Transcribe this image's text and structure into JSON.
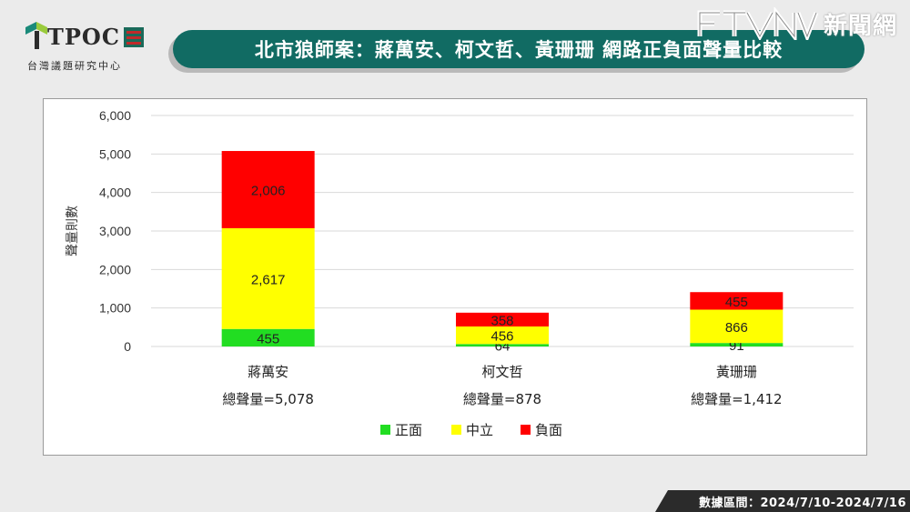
{
  "logo": {
    "name": "TPOC",
    "subtitle": "台灣議題研究中心"
  },
  "brand": {
    "name": "新聞網"
  },
  "title": "北市狼師案：蔣萬安、柯文哲、黃珊珊  網路正負面聲量比較",
  "footer": "數據區間：2024/7/10-2024/7/16",
  "colors": {
    "positive": "#22dd22",
    "neutral": "#ffff00",
    "negative": "#ff0000",
    "title_bg": "#116b63"
  },
  "chart_data": {
    "type": "bar",
    "stacked": true,
    "ylabel": "聲量則數",
    "ylim": [
      0,
      6000
    ],
    "yticks": [
      "0",
      "1,000",
      "2,000",
      "3,000",
      "4,000",
      "5,000",
      "6,000"
    ],
    "ytick_values": [
      0,
      1000,
      2000,
      3000,
      4000,
      5000,
      6000
    ],
    "grid": true,
    "legend_position": "bottom",
    "categories": [
      "蔣萬安",
      "柯文哲",
      "黃珊珊"
    ],
    "totals_labels": [
      "總聲量=5,078",
      "總聲量=878",
      "總聲量=1,412"
    ],
    "totals": [
      5078,
      878,
      1412
    ],
    "series": [
      {
        "name": "正面",
        "color": "#22dd22",
        "values": [
          455,
          64,
          91
        ],
        "labels": [
          "455",
          "64",
          "91"
        ]
      },
      {
        "name": "中立",
        "color": "#ffff00",
        "values": [
          2617,
          456,
          866
        ],
        "labels": [
          "2,617",
          "456",
          "866"
        ]
      },
      {
        "name": "負面",
        "color": "#ff0000",
        "values": [
          2006,
          358,
          455
        ],
        "labels": [
          "2,006",
          "358",
          "455"
        ]
      }
    ]
  }
}
